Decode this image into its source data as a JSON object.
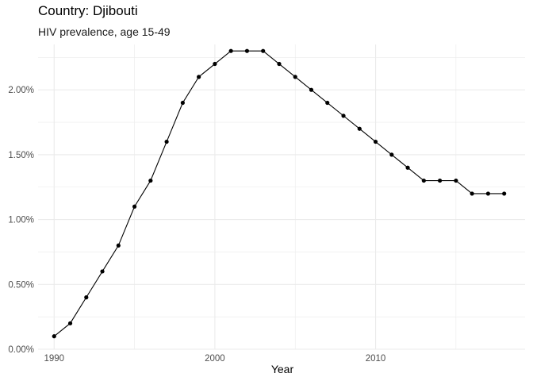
{
  "chart_data": {
    "type": "line",
    "title": "Country: Djibouti",
    "subtitle": "HIV prevalence, age 15-49",
    "xlabel": "Year",
    "ylabel": "",
    "xlim": [
      1989,
      2019.3
    ],
    "ylim": [
      0,
      0.0235
    ],
    "x_ticks": [
      1990,
      2000,
      2010
    ],
    "x_minor_ticks": [
      1995,
      2005,
      2015
    ],
    "y_ticks": [
      0,
      0.005,
      0.01,
      0.015,
      0.02
    ],
    "y_tick_labels": [
      "0.00%",
      "0.50%",
      "1.00%",
      "1.50%",
      "2.00%"
    ],
    "y_minor_ticks": [
      0.0025,
      0.0075,
      0.0125,
      0.0175,
      0.0225
    ],
    "grid": true,
    "legend": "none",
    "line_color": "#000000",
    "point_color": "#000000",
    "grid_color": "#ebebeb",
    "series": [
      {
        "x": [
          1990,
          1991,
          1992,
          1993,
          1994,
          1995,
          1996,
          1997,
          1998,
          1999,
          2000,
          2001,
          2002,
          2003,
          2004,
          2005,
          2006,
          2007,
          2008,
          2009,
          2010,
          2011,
          2012,
          2013,
          2014,
          2015,
          2016,
          2017,
          2018
        ],
        "y": [
          0.001,
          0.002,
          0.004,
          0.006,
          0.008,
          0.011,
          0.013,
          0.016,
          0.019,
          0.021,
          0.022,
          0.023,
          0.023,
          0.023,
          0.022,
          0.021,
          0.02,
          0.019,
          0.018,
          0.017,
          0.016,
          0.015,
          0.014,
          0.013,
          0.013,
          0.013,
          0.012,
          0.012,
          0.012
        ]
      }
    ]
  }
}
